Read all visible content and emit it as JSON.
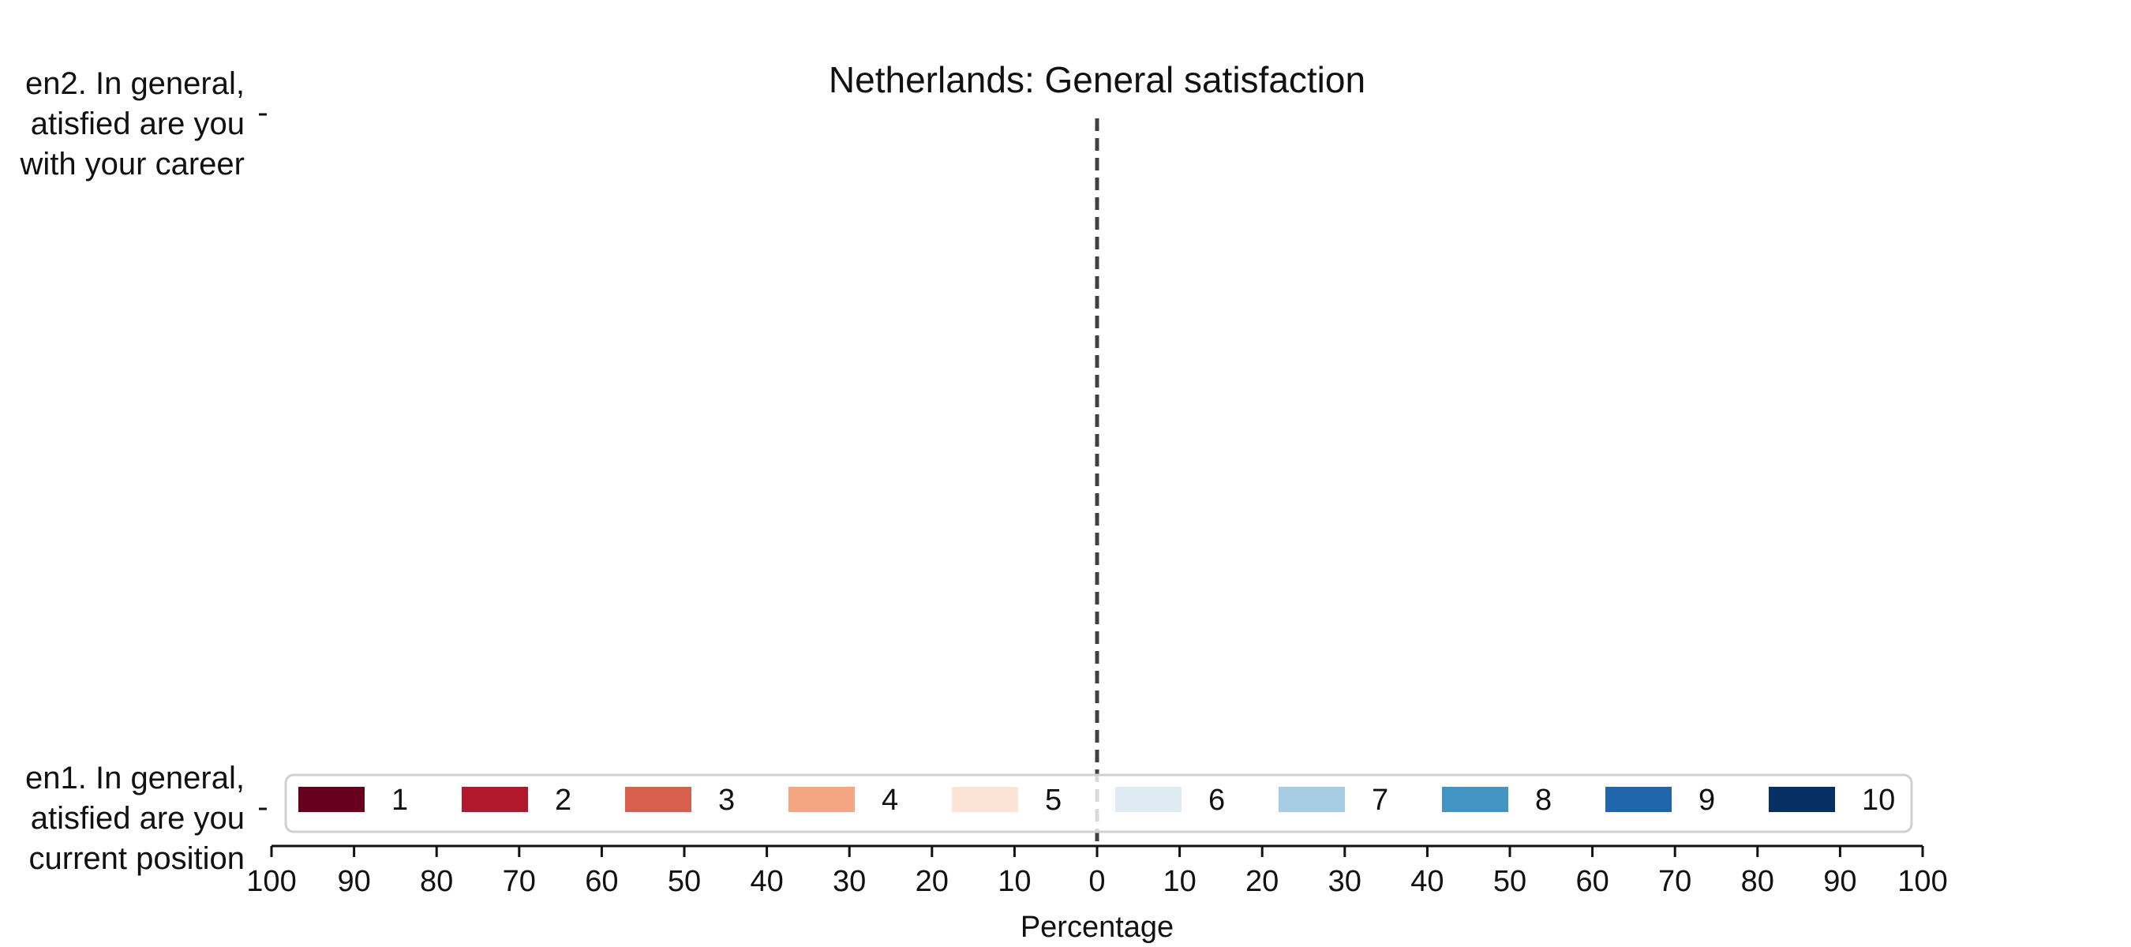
{
  "chart_data": {
    "type": "bar",
    "orientation": "horizontal",
    "stacked": "diverging",
    "title": "Netherlands: General satisfaction",
    "xlabel": "Percentage",
    "ylabel": "",
    "xlim": [
      -100,
      100
    ],
    "xtick_values": [
      -100,
      -90,
      -80,
      -70,
      -60,
      -50,
      -40,
      -30,
      -20,
      -10,
      0,
      10,
      20,
      30,
      40,
      50,
      60,
      70,
      80,
      90,
      100
    ],
    "xticks": [
      "100",
      "90",
      "80",
      "70",
      "60",
      "50",
      "40",
      "30",
      "20",
      "10",
      "0",
      "10",
      "20",
      "30",
      "40",
      "50",
      "60",
      "70",
      "80",
      "90",
      "100"
    ],
    "categories": [
      {
        "id": "gen2",
        "lines": [
          "en2. In general,",
          "atisfied are you",
          "with your career"
        ]
      },
      {
        "id": "gen1",
        "lines": [
          "en1. In general,",
          "atisfied are you",
          "current position"
        ]
      }
    ],
    "series": [
      {
        "name": "1",
        "color": "#67001f",
        "values": [
          null,
          null
        ]
      },
      {
        "name": "2",
        "color": "#b2182b",
        "values": [
          null,
          null
        ]
      },
      {
        "name": "3",
        "color": "#d6604d",
        "values": [
          null,
          null
        ]
      },
      {
        "name": "4",
        "color": "#f4a582",
        "values": [
          null,
          null
        ]
      },
      {
        "name": "5",
        "color": "#fbe3d6",
        "values": [
          null,
          null
        ]
      },
      {
        "name": "6",
        "color": "#deebf2",
        "values": [
          null,
          null
        ]
      },
      {
        "name": "7",
        "color": "#a6cde3",
        "values": [
          null,
          null
        ]
      },
      {
        "name": "8",
        "color": "#4393c3",
        "values": [
          null,
          null
        ]
      },
      {
        "name": "9",
        "color": "#2166ac",
        "values": [
          null,
          null
        ]
      },
      {
        "name": "10",
        "color": "#053061",
        "values": [
          null,
          null
        ]
      }
    ],
    "center_line": {
      "x": 0,
      "style": "dashed",
      "color": "#404040"
    },
    "legend": {
      "position": "bottom",
      "columns": 10
    },
    "grid": false
  }
}
